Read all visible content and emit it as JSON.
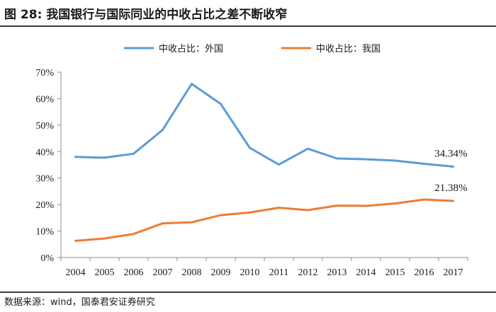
{
  "header": {
    "title": "图 28:   我国银行与国际同业的中收占比之差不断收窄"
  },
  "footer": {
    "source": "数据来源：wind，国泰君安证券研究"
  },
  "chart_data": {
    "type": "line",
    "title": "我国银行与国际同业的中收占比之差不断收窄",
    "xlabel": "",
    "ylabel": "",
    "categories": [
      "2004",
      "2005",
      "2006",
      "2007",
      "2008",
      "2009",
      "2010",
      "2011",
      "2012",
      "2013",
      "2014",
      "2015",
      "2016",
      "2017"
    ],
    "ylim": [
      0,
      70
    ],
    "yticks": [
      0,
      10,
      20,
      30,
      40,
      50,
      60,
      70
    ],
    "ytick_labels": [
      "0%",
      "10%",
      "20%",
      "30%",
      "40%",
      "50%",
      "60%",
      "70%"
    ],
    "grid": false,
    "legend_position": "top-center",
    "series": [
      {
        "name": "中收占比：外国",
        "color": "#5b9bd5",
        "values": [
          38.0,
          37.7,
          39.2,
          48.2,
          65.6,
          58.0,
          41.4,
          35.1,
          41.1,
          37.4,
          37.1,
          36.6,
          35.4,
          34.34
        ]
      },
      {
        "name": "中收占比：我国",
        "color": "#ed7d31",
        "values": [
          6.3,
          7.2,
          8.9,
          12.9,
          13.3,
          16.0,
          17.0,
          18.8,
          17.9,
          19.6,
          19.5,
          20.4,
          21.9,
          21.38
        ]
      }
    ],
    "annotations": [
      {
        "text": "34.34%",
        "series": 0,
        "index": 13
      },
      {
        "text": "21.38%",
        "series": 1,
        "index": 13
      }
    ]
  }
}
